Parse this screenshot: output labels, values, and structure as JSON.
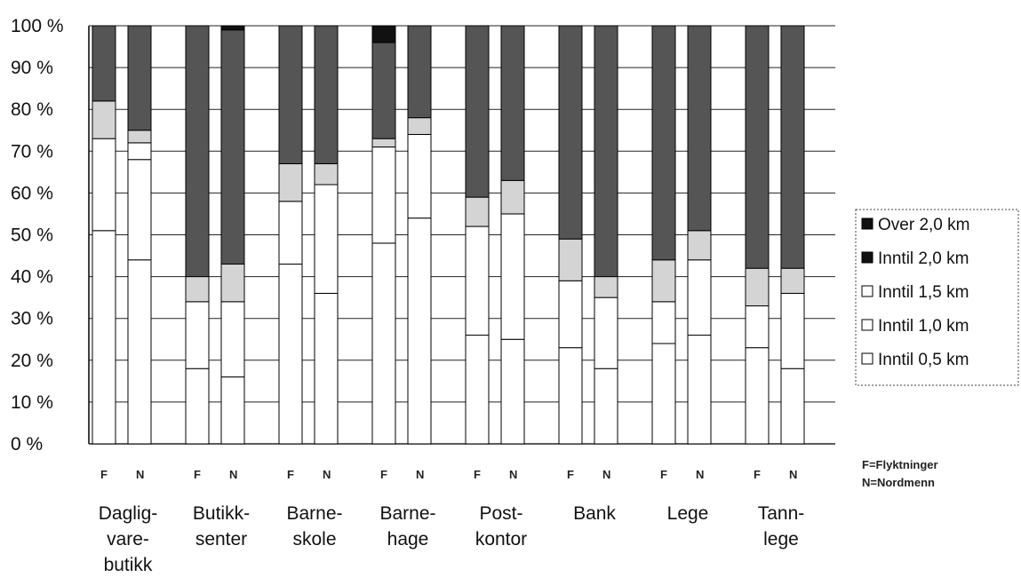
{
  "chart_data": {
    "type": "bar",
    "stacked": true,
    "percent": true,
    "y_ticks": [
      "0 %",
      "10 %",
      "20 %",
      "30 %",
      "40 %",
      "50 %",
      "60 %",
      "70 %",
      "80 %",
      "90 %",
      "100 %"
    ],
    "ylim": [
      0,
      100
    ],
    "grid": true,
    "legend_position": "right",
    "legend": [
      "Over 2,0 km",
      "Inntil 2,0 km",
      "Inntil 1,5 km",
      "Inntil 1,0 km",
      "Inntil 0,5 km"
    ],
    "group_member_labels": [
      "F",
      "N"
    ],
    "note": [
      "F=Flyktninger",
      "N=Nordmenn"
    ],
    "categories": [
      {
        "label": [
          "Daglig-",
          "vare-",
          "butikk"
        ],
        "bars": [
          {
            "member": "F",
            "segments": [
              51,
              22,
              0,
              9,
              18
            ]
          },
          {
            "member": "N",
            "segments": [
              44,
              24,
              4,
              3,
              25
            ]
          }
        ]
      },
      {
        "label": [
          "Butikk-",
          "senter"
        ],
        "bars": [
          {
            "member": "F",
            "segments": [
              18,
              16,
              0,
              6,
              60
            ]
          },
          {
            "member": "N",
            "segments": [
              16,
              18,
              0,
              9,
              56,
              1
            ]
          }
        ]
      },
      {
        "label": [
          "Barne-",
          "skole"
        ],
        "bars": [
          {
            "member": "F",
            "segments": [
              43,
              15,
              0,
              9,
              33
            ]
          },
          {
            "member": "N",
            "segments": [
              36,
              26,
              0,
              5,
              33
            ]
          }
        ]
      },
      {
        "label": [
          "Barne-",
          "hage"
        ],
        "bars": [
          {
            "member": "F",
            "segments": [
              48,
              23,
              0,
              2,
              23,
              4
            ]
          },
          {
            "member": "N",
            "segments": [
              54,
              20,
              0,
              4,
              22
            ]
          }
        ]
      },
      {
        "label": [
          "Post-",
          "kontor"
        ],
        "bars": [
          {
            "member": "F",
            "segments": [
              26,
              26,
              0,
              7,
              41
            ]
          },
          {
            "member": "N",
            "segments": [
              25,
              30,
              0,
              8,
              37
            ]
          }
        ]
      },
      {
        "label": [
          "Bank"
        ],
        "bars": [
          {
            "member": "F",
            "segments": [
              23,
              16,
              0,
              10,
              51
            ]
          },
          {
            "member": "N",
            "segments": [
              18,
              17,
              0,
              5,
              60
            ]
          }
        ]
      },
      {
        "label": [
          "Lege"
        ],
        "bars": [
          {
            "member": "F",
            "segments": [
              24,
              10,
              0,
              10,
              56
            ]
          },
          {
            "member": "N",
            "segments": [
              26,
              18,
              0,
              7,
              49
            ]
          }
        ]
      },
      {
        "label": [
          "Tann-",
          "lege"
        ],
        "bars": [
          {
            "member": "F",
            "segments": [
              23,
              10,
              0,
              9,
              58
            ]
          },
          {
            "member": "N",
            "segments": [
              18,
              18,
              0,
              6,
              58
            ]
          }
        ]
      }
    ],
    "segment_order": [
      "Inntil 0,5 km",
      "Inntil 1,0 km",
      "Inntil 1,5 km",
      "Inntil 2,0 km",
      "Over 2,0 km",
      "Over 2,0 km (dark top sliver)"
    ],
    "colors": {
      "Inntil 0,5 km": "#ffffff",
      "Inntil 1,0 km": "#ffffff",
      "Inntil 1,5 km": "#ffffff",
      "Inntil 2,0 km": "#d4d4d4",
      "Over 2,0 km": "#555555",
      "top_sliver": "#111111",
      "legend_dark": "#111111",
      "bar_outline": "#000000",
      "grid": "#222222"
    }
  }
}
